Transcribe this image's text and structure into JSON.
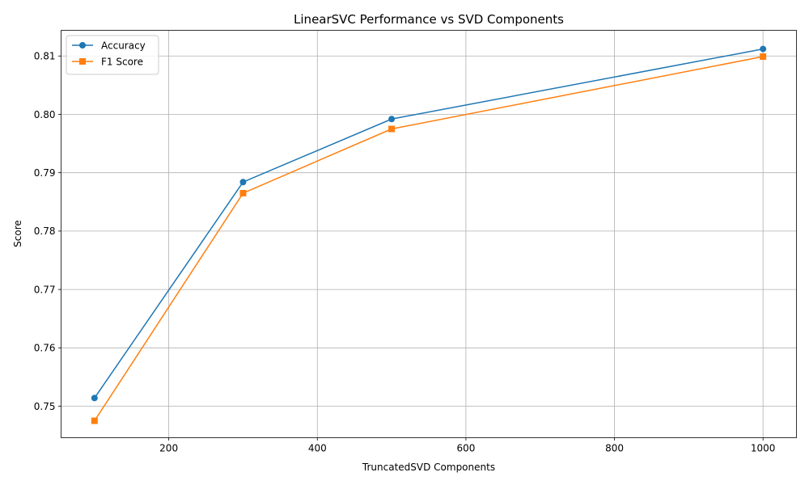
{
  "chart_data": {
    "type": "line",
    "title": "LinearSVC Performance vs SVD Components",
    "xlabel": "TruncatedSVD Components",
    "ylabel": "Score",
    "x": [
      100,
      300,
      500,
      1000
    ],
    "xlim": [
      55,
      1045
    ],
    "ylim": [
      0.7446,
      0.8144
    ],
    "xticks": [
      200,
      400,
      600,
      800,
      1000
    ],
    "xtick_labels": [
      "200",
      "400",
      "600",
      "800",
      "1000"
    ],
    "yticks": [
      0.75,
      0.76,
      0.77,
      0.78,
      0.79,
      0.8,
      0.81
    ],
    "ytick_labels": [
      "0.75",
      "0.76",
      "0.77",
      "0.78",
      "0.79",
      "0.80",
      "0.81"
    ],
    "grid": true,
    "legend_position": "top-left",
    "series": [
      {
        "name": "Accuracy",
        "values": [
          0.7514,
          0.7884,
          0.7992,
          0.8112
        ],
        "color": "#1f77b4",
        "marker": "circle"
      },
      {
        "name": "F1 Score",
        "values": [
          0.7475,
          0.7865,
          0.7975,
          0.8099
        ],
        "color": "#ff7f0e",
        "marker": "square"
      }
    ]
  }
}
